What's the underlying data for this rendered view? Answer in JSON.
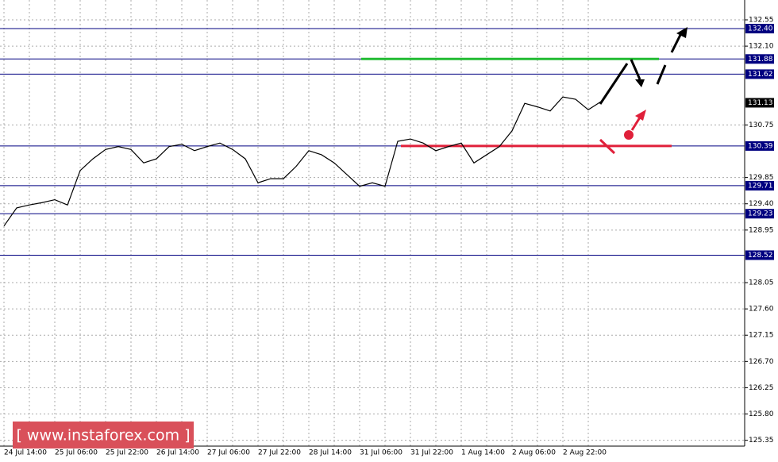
{
  "chart_data": {
    "type": "line",
    "color": "#000000",
    "categories": [
      "24 Jul 14:00",
      null,
      null,
      null,
      "25 Jul 06:00",
      null,
      null,
      null,
      "25 Jul 22:00",
      null,
      null,
      null,
      "26 Jul 14:00",
      null,
      null,
      null,
      "27 Jul 06:00",
      null,
      null,
      null,
      "27 Jul 22:00",
      null,
      null,
      null,
      "28 Jul 14:00",
      null,
      null,
      null,
      "31 Jul 06:00",
      null,
      null,
      null,
      "31 Jul 22:00",
      null,
      null,
      null,
      "1 Aug 14:00",
      null,
      null,
      null,
      "2 Aug 06:00",
      null,
      null,
      null,
      "2 Aug 22:00",
      null,
      null,
      null
    ],
    "values": [
      129.02,
      129.33,
      129.38,
      129.42,
      129.47,
      129.38,
      129.97,
      130.17,
      130.33,
      130.38,
      130.33,
      130.1,
      130.17,
      130.38,
      130.42,
      130.31,
      130.38,
      130.44,
      130.33,
      130.17,
      129.76,
      129.83,
      129.83,
      130.04,
      130.31,
      130.24,
      130.1,
      129.9,
      129.7,
      129.76,
      129.7,
      130.47,
      130.51,
      130.44,
      130.31,
      130.38,
      130.44,
      130.1,
      130.24,
      130.38,
      130.65,
      131.12,
      131.06,
      130.99,
      131.23,
      131.19,
      131.01,
      131.15
    ],
    "ylim": [
      125.25,
      132.89
    ],
    "yticks": [
      132.55,
      {
        "value": 132.1,
        "label": "132.10"
      },
      130.75,
      129.85,
      {
        "value": 129.4,
        "label": "129.40"
      },
      128.95,
      128.05,
      {
        "value": 127.6,
        "label": "127.60"
      },
      127.15,
      {
        "value": 126.7,
        "label": "126.70"
      },
      126.25,
      {
        "value": 125.8,
        "label": "125.80"
      },
      125.35
    ],
    "grid": true,
    "levels": [
      {
        "value": 132.4,
        "label": "132.40"
      },
      {
        "value": 131.88,
        "label": "131.88"
      },
      {
        "value": 131.62,
        "label": "131.62"
      },
      {
        "value": 130.39,
        "label": "130.39"
      },
      {
        "value": 129.71,
        "label": "129.71"
      },
      {
        "value": 129.23,
        "label": "129.23"
      },
      {
        "value": 128.52,
        "label": "128.52"
      }
    ],
    "level_color": "#000080",
    "current_price": 131.13,
    "highlights": [
      {
        "value": 131.88,
        "color": "#22bb33"
      },
      {
        "value": 130.39,
        "color": "#e0203a"
      }
    ],
    "watermark": "[  www.instaforex.com ]"
  }
}
